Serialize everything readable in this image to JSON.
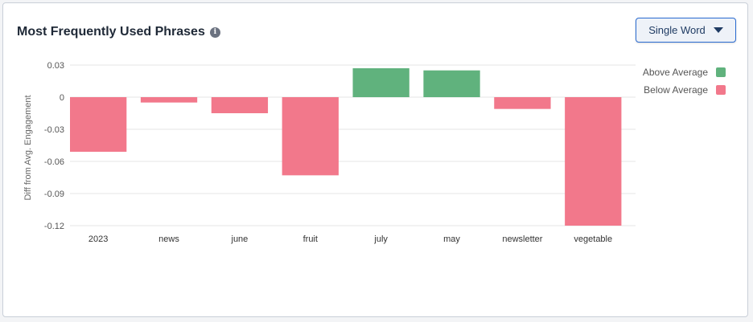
{
  "card": {
    "title": "Most Frequently Used Phrases",
    "info_icon": "info-icon"
  },
  "select": {
    "value": "Single Word",
    "icon": "caret-down-icon"
  },
  "colors": {
    "above": "#60b27d",
    "below": "#f2788b",
    "grid": "#e6e6e6",
    "button_border": "#2a6bd1"
  },
  "chart_data": {
    "type": "bar",
    "categories": [
      "2023",
      "news",
      "june",
      "fruit",
      "july",
      "may",
      "newsletter",
      "vegetable"
    ],
    "values": [
      -0.051,
      -0.005,
      -0.015,
      -0.073,
      0.027,
      0.025,
      -0.011,
      -0.12
    ],
    "ylabel": "Diff from Avg. Engagement",
    "ylim": [
      -0.12,
      0.03
    ],
    "yticks": [
      0.03,
      0,
      -0.03,
      -0.06,
      -0.09,
      -0.12
    ],
    "ytick_labels": [
      "0.03",
      "0",
      "-0.03",
      "-0.06",
      "-0.09",
      "-0.12"
    ],
    "grid": true,
    "legend": {
      "placement": "right",
      "entries": [
        {
          "label": "Above Average",
          "key": "above"
        },
        {
          "label": "Below Average",
          "key": "below"
        }
      ]
    }
  }
}
